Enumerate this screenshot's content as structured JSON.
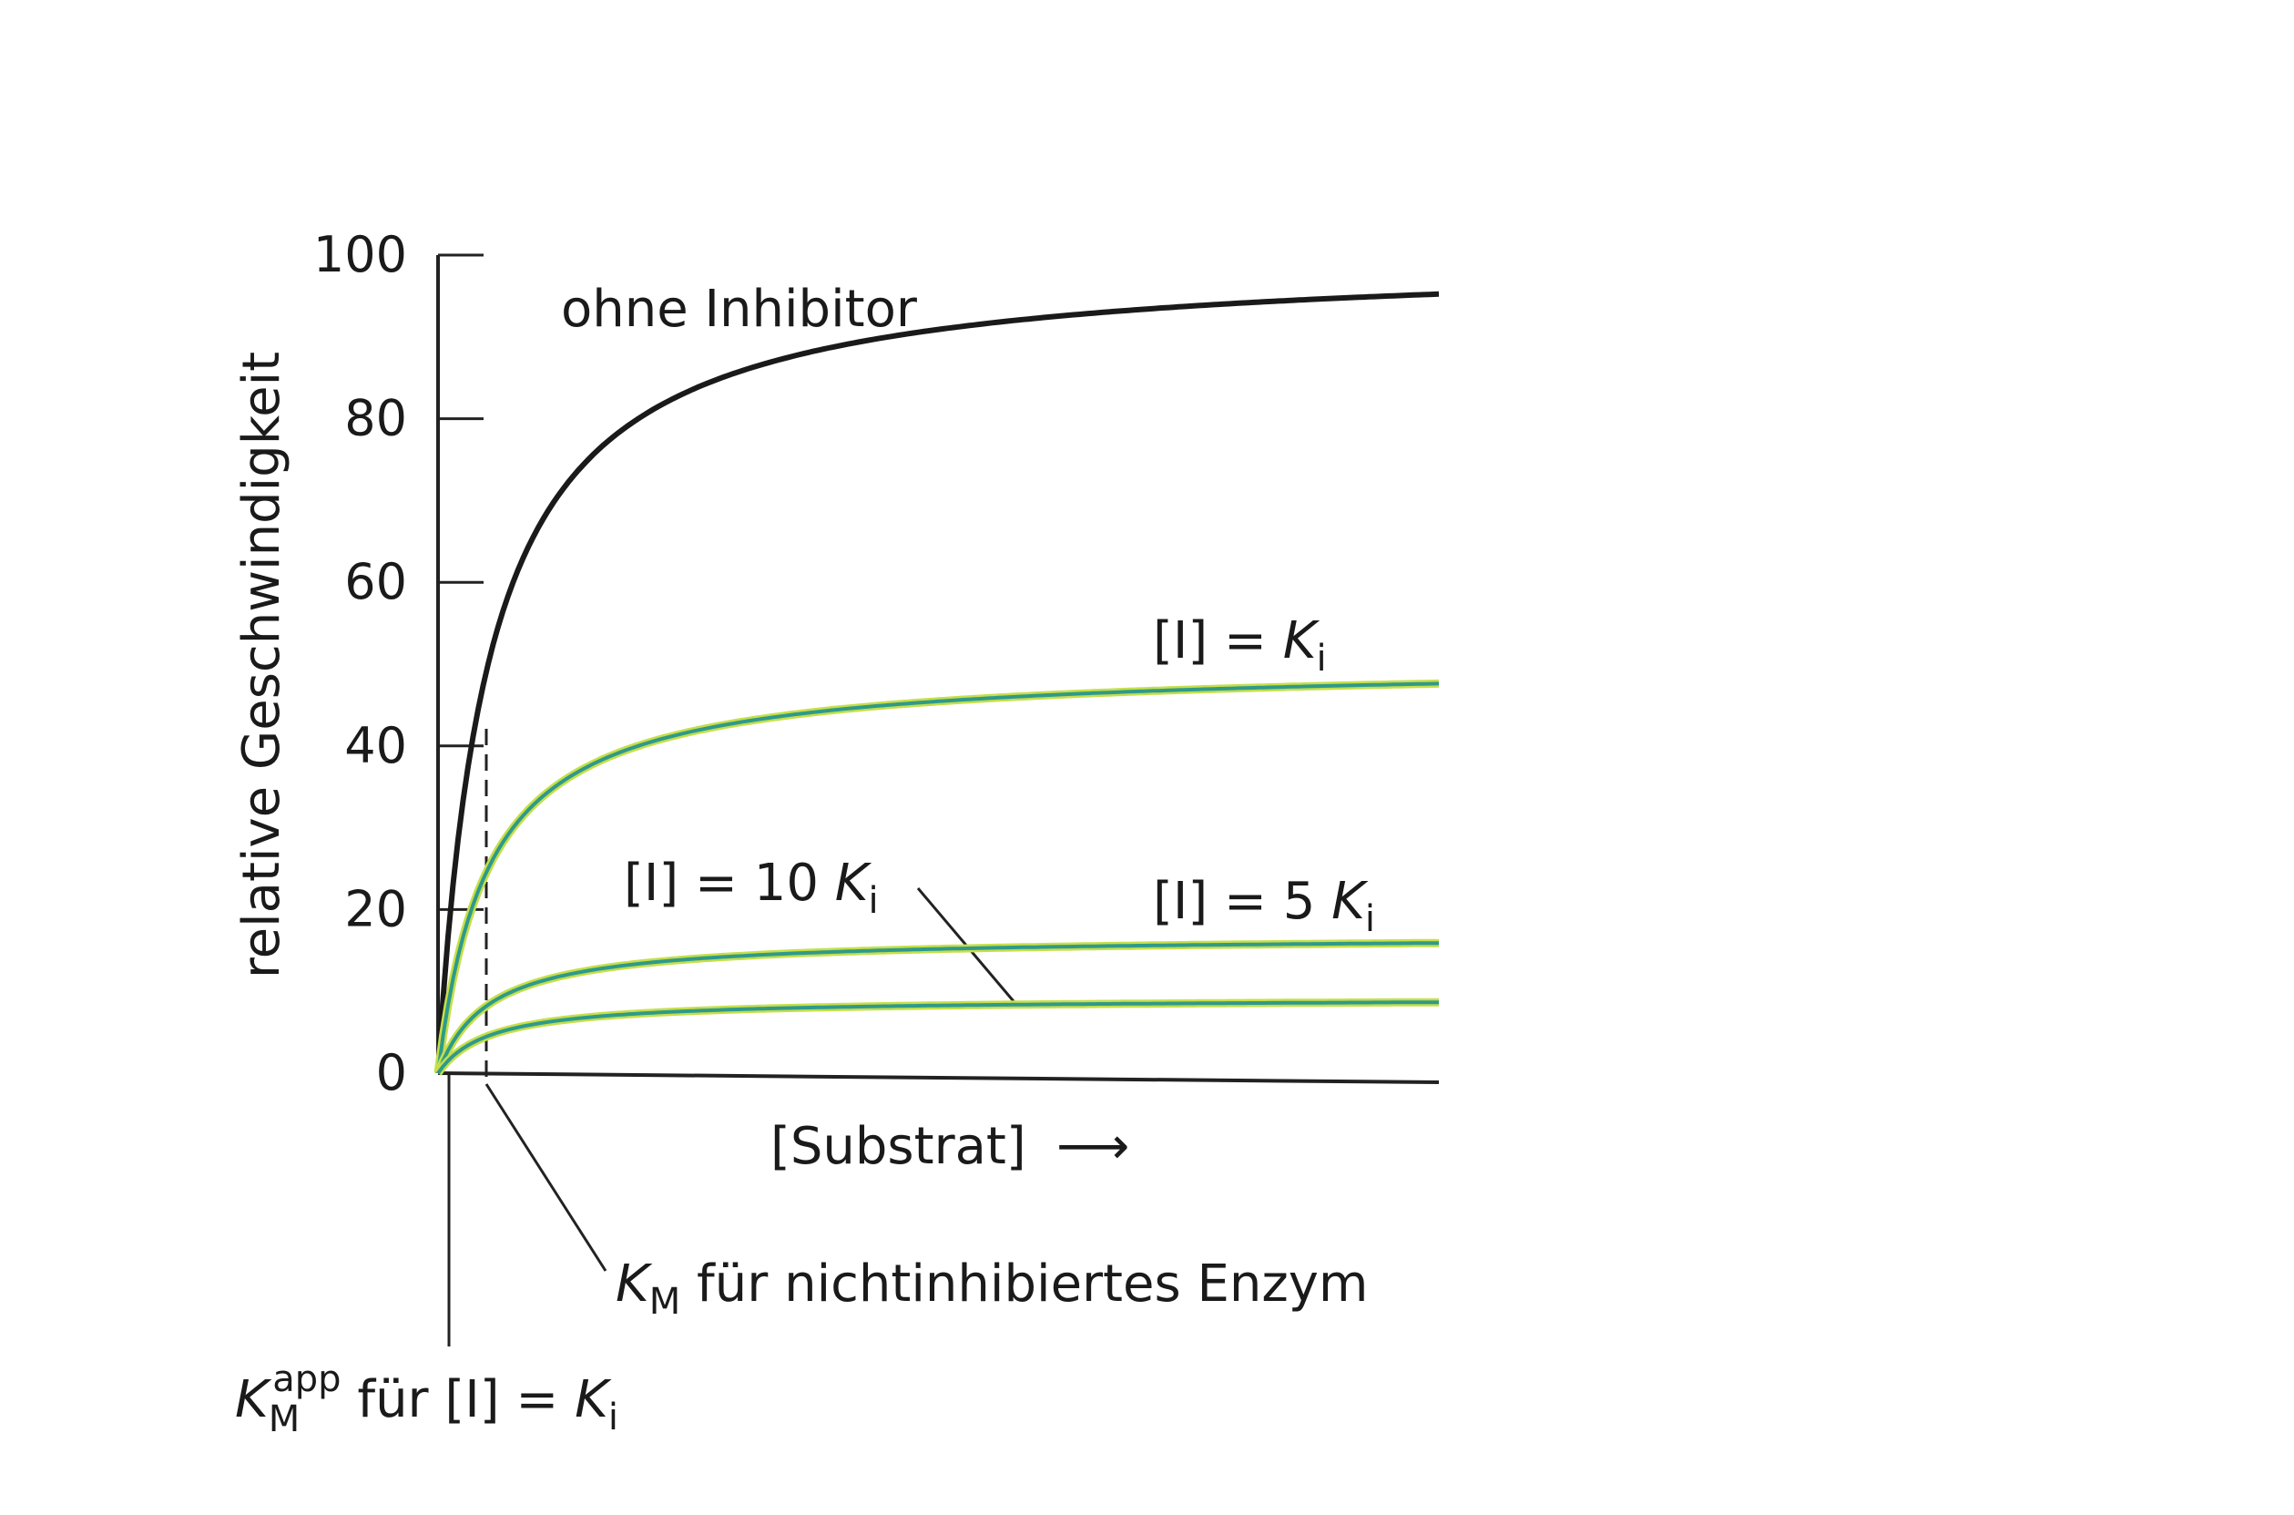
{
  "chart_data": {
    "type": "line",
    "ylabel": "relative Geschwindigkeit",
    "xlabel": "[Substrat]",
    "xlabel_arrow": "⟶",
    "ylim": [
      0,
      100
    ],
    "y_ticks": [
      "0",
      "20",
      "40",
      "60",
      "80",
      "100"
    ],
    "x_ticks": [],
    "grid": false,
    "Km": 1,
    "x": [
      0,
      0.25,
      0.5,
      0.75,
      1,
      1.5,
      2,
      3,
      4,
      5,
      6,
      8,
      10,
      12,
      14,
      16,
      18,
      20
    ],
    "series": [
      {
        "name": "ohne Inhibitor",
        "color": "#1a1a1a",
        "Vmax": 100,
        "values": [
          0,
          20,
          33.3,
          42.9,
          50,
          60,
          66.7,
          75,
          80,
          83.3,
          85.7,
          88.9,
          90.9,
          92.3,
          93.3,
          94.1,
          94.7,
          95.2
        ]
      },
      {
        "name": "[I] = Ki",
        "color": "#2f9a8a",
        "Vmax": 50,
        "values": [
          0,
          10,
          16.7,
          21.4,
          25,
          30,
          33.3,
          37.5,
          40,
          41.7,
          42.9,
          44.4,
          45.5,
          46.2,
          46.7,
          47.1,
          47.4,
          47.6
        ]
      },
      {
        "name": "[I] = 5 Ki",
        "color": "#2f9a8a",
        "Vmax": 16.7,
        "values": [
          0,
          3.3,
          5.6,
          7.1,
          8.3,
          10,
          11.1,
          12.5,
          13.3,
          13.9,
          14.3,
          14.8,
          15.2,
          15.4,
          15.6,
          15.7,
          15.8,
          15.9
        ]
      },
      {
        "name": "[I] = 10 Ki",
        "color": "#2f9a8a",
        "Vmax": 9.1,
        "values": [
          0,
          1.8,
          3.0,
          3.9,
          4.5,
          5.5,
          6.1,
          6.8,
          7.3,
          7.6,
          7.8,
          8.1,
          8.3,
          8.4,
          8.5,
          8.6,
          8.6,
          8.7
        ]
      }
    ],
    "annotations": {
      "ohne_inhibitor": "ohne Inhibitor",
      "i_eq_ki_prefix": "[I] = ",
      "i_eq_5ki_prefix": "[I] = 5 ",
      "i_eq_10ki_prefix": "[I] = 10 ",
      "K": "K",
      "i_sub": "i",
      "M_sub": "M",
      "app_sup": "app",
      "km_label_rest": " für nichtinhibiertes Enzym",
      "km_app_label_rest": " für [I] = "
    }
  }
}
